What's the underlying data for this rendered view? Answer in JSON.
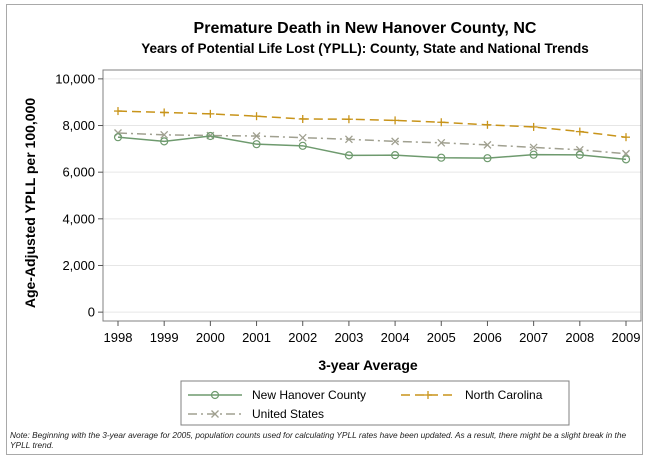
{
  "chart_data": {
    "type": "line",
    "title": "Premature Death in New Hanover County, NC",
    "subtitle": "Years of Potential Life Lost (YPLL): County, State and National Trends",
    "xlabel": "3-year Average",
    "ylabel": "Age-Adjusted YPLL per 100,000",
    "categories": [
      "1998",
      "1999",
      "2000",
      "2001",
      "2002",
      "2003",
      "2004",
      "2005",
      "2006",
      "2007",
      "2008",
      "2009"
    ],
    "ylim": [
      0,
      10000
    ],
    "y_ticks": [
      "0",
      "2,000",
      "4,000",
      "6,000",
      "8,000",
      "10,000"
    ],
    "grid": true,
    "legend_position": "bottom",
    "series": [
      {
        "name": "New Hanover County",
        "color": "#6e9a6e",
        "marker": "circle",
        "line_style": "solid",
        "values": [
          7500,
          7320,
          7550,
          7200,
          7130,
          6720,
          6730,
          6620,
          6600,
          6750,
          6740,
          6550
        ]
      },
      {
        "name": "North Carolina",
        "color": "#c8941a",
        "marker": "plus",
        "line_style": "dashed",
        "values": [
          8620,
          8560,
          8500,
          8400,
          8280,
          8270,
          8220,
          8140,
          8030,
          7940,
          7740,
          7500
        ]
      },
      {
        "name": "United States",
        "color": "#a0a090",
        "marker": "x",
        "line_style": "dash-dot",
        "values": [
          7680,
          7600,
          7570,
          7550,
          7480,
          7410,
          7320,
          7260,
          7170,
          7060,
          6960,
          6790
        ]
      }
    ]
  },
  "note": "Note: Beginning with the 3-year average for 2005, population counts used for calculating YPLL rates have been updated. As a result, there might be a slight break in the YPLL trend."
}
